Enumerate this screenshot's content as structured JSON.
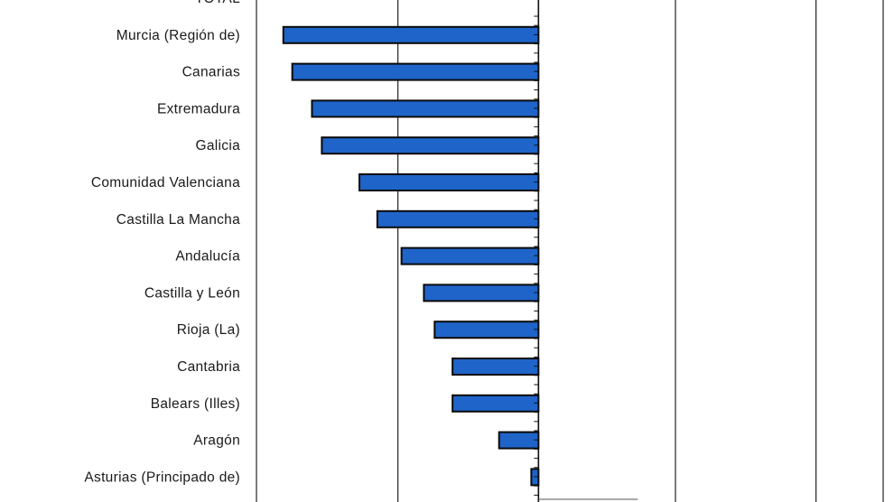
{
  "chart_data": {
    "type": "bar",
    "orientation": "horizontal",
    "grid": true,
    "colors": {
      "bar": "#1f64c8",
      "bar_outline": "#0a0a0a",
      "grid": "#222222"
    },
    "categories": [
      "TOTAL",
      "Murcia (Región de)",
      "Canarias",
      "Extremadura",
      "Galicia",
      "Comunidad Valenciana",
      "Castilla La Mancha",
      "Andalucía",
      "Castilla y León",
      "Rioja (La)",
      "Cantabria",
      "Balears (Illes)",
      "Aragón",
      "Asturias (Principado de)"
    ],
    "values": [
      null,
      -28.5,
      -27.5,
      -25.3,
      -24.2,
      -20.0,
      -18.0,
      -15.3,
      -12.8,
      -11.6,
      -9.6,
      -9.6,
      -4.4,
      -0.8
    ],
    "xlim": [
      -31.5,
      38.5
    ],
    "gridlines_x": [
      -31.5,
      -15.7,
      15.3,
      31,
      38.5
    ]
  }
}
